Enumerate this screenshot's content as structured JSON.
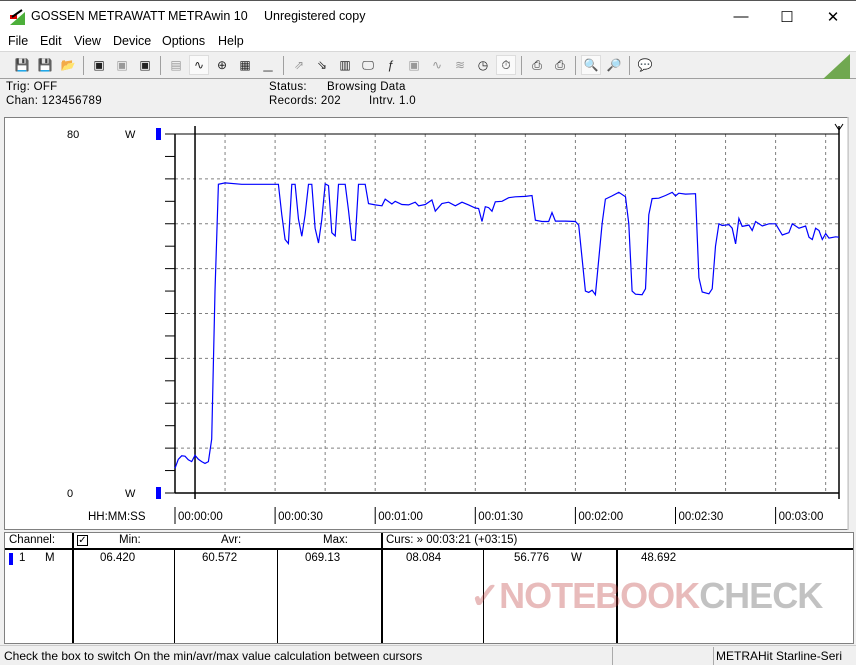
{
  "window": {
    "brand": "GOSSEN METRAWATT",
    "app": "METRAwin 10",
    "license": "Unregistered copy",
    "minimize": "—",
    "maximize": "☐",
    "close": "✕"
  },
  "menu": [
    {
      "label": "File"
    },
    {
      "label": "Edit"
    },
    {
      "label": "View"
    },
    {
      "label": "Device"
    },
    {
      "label": "Options"
    },
    {
      "label": "Help"
    }
  ],
  "toolbar": {
    "icons": [
      "save-icon",
      "save-as-icon",
      "open-folder-icon",
      "|",
      "device-read-icon",
      "device-transfer-icon",
      "device-memory-icon",
      "|",
      "display-numeric-icon",
      "display-graph-icon",
      "crosshair-icon",
      "table-icon",
      "bar-chart-icon",
      "|",
      "export-icon",
      "import-icon",
      "data-logger-icon",
      "monitor-icon",
      "formula-icon",
      "device-settings-icon",
      "waveform-icon",
      "wave-pattern-icon",
      "clock-icon",
      "stopwatch-icon",
      "|",
      "print-preview-icon",
      "print-icon",
      "|",
      "zoom-graph-icon",
      "zoom-wave-icon",
      "|",
      "comment-icon"
    ],
    "pressed": [
      "display-graph-icon",
      "stopwatch-icon",
      "zoom-graph-icon"
    ],
    "disabled": [
      "device-transfer-icon",
      "display-numeric-icon",
      "bar-chart-icon",
      "export-icon",
      "device-settings-icon",
      "waveform-icon",
      "wave-pattern-icon"
    ]
  },
  "info": {
    "trig": "Trig: OFF",
    "chan": "Chan:  123456789",
    "status_label": "Status:",
    "status_value": "Browsing Data",
    "records": "Records: 202",
    "interval": "Intrv. 1.0"
  },
  "chart_data": {
    "type": "line",
    "ylim": [
      0,
      80
    ],
    "y_top_label": "80",
    "y_bottom_label": "0",
    "y_unit": "W",
    "x_axis_label": "HH:MM:SS",
    "xlim": [
      0,
      199
    ],
    "x_ticks": [
      {
        "t": 0,
        "label": "00:00:00"
      },
      {
        "t": 30,
        "label": "00:00:30"
      },
      {
        "t": 60,
        "label": "00:01:00"
      },
      {
        "t": 90,
        "label": "00:01:30"
      },
      {
        "t": 120,
        "label": "00:02:00"
      },
      {
        "t": 150,
        "label": "00:02:30"
      },
      {
        "t": 180,
        "label": "00:03:00"
      }
    ],
    "grid": true,
    "cursor_t": 6,
    "line_color": "#0000ff",
    "points": [
      [
        0,
        5.5
      ],
      [
        1,
        7.5
      ],
      [
        2,
        8.3
      ],
      [
        3,
        8.2
      ],
      [
        4,
        7.4
      ],
      [
        5,
        7.0
      ],
      [
        6,
        8.4
      ],
      [
        7,
        7.5
      ],
      [
        8,
        7.0
      ],
      [
        9,
        6.6
      ],
      [
        10,
        7.0
      ],
      [
        11,
        12
      ],
      [
        12,
        45
      ],
      [
        13,
        68.8
      ],
      [
        15,
        69.1
      ],
      [
        20,
        68.8
      ],
      [
        25,
        68.8
      ],
      [
        31,
        68.8
      ],
      [
        32,
        62
      ],
      [
        33,
        56.5
      ],
      [
        34,
        55.6
      ],
      [
        35,
        68.8
      ],
      [
        36,
        68.8
      ],
      [
        37,
        61
      ],
      [
        38,
        57.2
      ],
      [
        39,
        62
      ],
      [
        40,
        68.8
      ],
      [
        41,
        68.8
      ],
      [
        42,
        59
      ],
      [
        43,
        55.7
      ],
      [
        44,
        61
      ],
      [
        45,
        68.9
      ],
      [
        46,
        68.5
      ],
      [
        47,
        58
      ],
      [
        48,
        57.3
      ],
      [
        49,
        68.8
      ],
      [
        51,
        68.8
      ],
      [
        52,
        63
      ],
      [
        53,
        56.4
      ],
      [
        54,
        56.3
      ],
      [
        55,
        68.8
      ],
      [
        57,
        68.8
      ],
      [
        58,
        64.5
      ],
      [
        60,
        64.2
      ],
      [
        62,
        64
      ],
      [
        63,
        65.5
      ],
      [
        65,
        64.4
      ],
      [
        66,
        65
      ],
      [
        68,
        64.3
      ],
      [
        70,
        64.2
      ],
      [
        72,
        64.8
      ],
      [
        73,
        64
      ],
      [
        75,
        64.3
      ],
      [
        77,
        65.3
      ],
      [
        78,
        62.8
      ],
      [
        80,
        64.5
      ],
      [
        82,
        64.8
      ],
      [
        84,
        64
      ],
      [
        86,
        64.8
      ],
      [
        88,
        64.2
      ],
      [
        90,
        63.5
      ],
      [
        91,
        63.4
      ],
      [
        92,
        60.5
      ],
      [
        93,
        63.8
      ],
      [
        94,
        63.6
      ],
      [
        95,
        62.8
      ],
      [
        96,
        64.9
      ],
      [
        98,
        65
      ],
      [
        100,
        65.8
      ],
      [
        102,
        66
      ],
      [
        105,
        66.1
      ],
      [
        107,
        66.3
      ],
      [
        108,
        60.8
      ],
      [
        110,
        60.5
      ],
      [
        112,
        60.5
      ],
      [
        113,
        62.5
      ],
      [
        114,
        60.6
      ],
      [
        117,
        60.6
      ],
      [
        120,
        60.5
      ],
      [
        121,
        59.7
      ],
      [
        123,
        45
      ],
      [
        124,
        44.7
      ],
      [
        125,
        45.2
      ],
      [
        126,
        44.2
      ],
      [
        128,
        60
      ],
      [
        129,
        65.5
      ],
      [
        131,
        66.2
      ],
      [
        133,
        67
      ],
      [
        135,
        66
      ],
      [
        136,
        60
      ],
      [
        137,
        45
      ],
      [
        138,
        44.3
      ],
      [
        140,
        44.2
      ],
      [
        141,
        45.5
      ],
      [
        142,
        62
      ],
      [
        143,
        65.6
      ],
      [
        145,
        65.7
      ],
      [
        147,
        66.3
      ],
      [
        149,
        67
      ],
      [
        150,
        66.2
      ],
      [
        151,
        66.8
      ],
      [
        153,
        66.6
      ],
      [
        156,
        66.7
      ],
      [
        157,
        48
      ],
      [
        158,
        44.8
      ],
      [
        160,
        44.4
      ],
      [
        161,
        45.5
      ],
      [
        162,
        55
      ],
      [
        163,
        60
      ],
      [
        164,
        59.6
      ],
      [
        166,
        59.8
      ],
      [
        167,
        59
      ],
      [
        168,
        55.5
      ],
      [
        169,
        61.2
      ],
      [
        170,
        59.4
      ],
      [
        172,
        59.7
      ],
      [
        173,
        58.5
      ],
      [
        174,
        60.5
      ],
      [
        176,
        59.5
      ],
      [
        178,
        60
      ],
      [
        180,
        60
      ],
      [
        182,
        57.5
      ],
      [
        184,
        58
      ],
      [
        185,
        60
      ],
      [
        187,
        59
      ],
      [
        189,
        59.5
      ],
      [
        190,
        57
      ],
      [
        191,
        56.5
      ],
      [
        192,
        59
      ],
      [
        193,
        58.5
      ],
      [
        194,
        56.5
      ],
      [
        195,
        57.8
      ],
      [
        196,
        56.8
      ],
      [
        198,
        57.1
      ],
      [
        199,
        57
      ]
    ]
  },
  "table": {
    "headers": {
      "channel": "Channel:",
      "min": "Min:",
      "avr": "Avr:",
      "max": "Max:",
      "curs": "Curs: » 00:03:21 (+03:15)"
    },
    "checkbox_checked": true,
    "row": {
      "num": "1",
      "type": "M",
      "min": "06.420",
      "avr": "60.572",
      "max": "069.13",
      "c1": "08.084",
      "c2": "56.776",
      "unit": "W",
      "c3": "48.692"
    },
    "channel_color": "#0000ff"
  },
  "statusbar": {
    "hint": "Check the box to switch On the min/avr/max value calculation between cursors",
    "device": "METRAHit Starline-Seri"
  },
  "watermark": {
    "text_a": "NOTEBOOK",
    "text_b": "CHECK"
  }
}
